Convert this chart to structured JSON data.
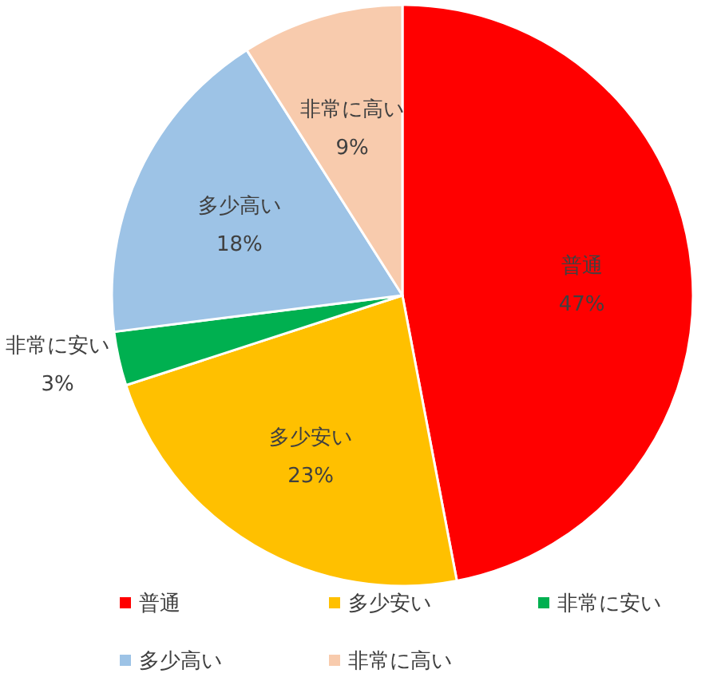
{
  "chart_data": {
    "type": "pie",
    "categories": [
      "普通",
      "多少安い",
      "非常に安い",
      "多少高い",
      "非常に高い"
    ],
    "values": [
      47,
      23,
      3,
      18,
      9
    ],
    "value_labels": [
      "47%",
      "23%",
      "3%",
      "18%",
      "9%"
    ],
    "colors": [
      "#ff0000",
      "#ffc000",
      "#00b050",
      "#9dc3e6",
      "#f8cbad"
    ],
    "legend": "bottom"
  }
}
